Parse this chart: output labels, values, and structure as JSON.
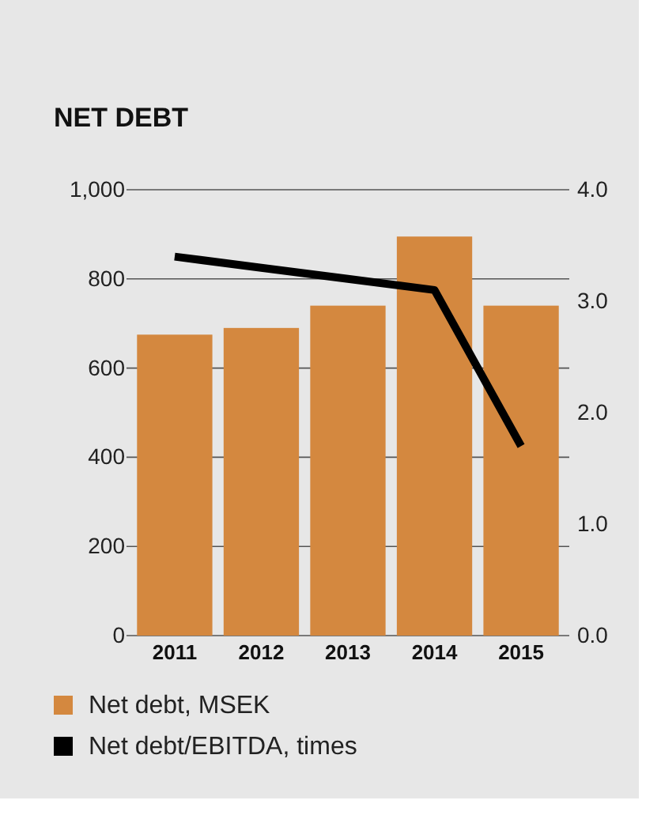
{
  "chart_data": {
    "type": "bar",
    "title": "NET DEBT",
    "categories": [
      "2011",
      "2012",
      "2013",
      "2014",
      "2015"
    ],
    "series": [
      {
        "name": "Net debt, MSEK",
        "color": "#d4883f",
        "values": [
          675,
          690,
          740,
          895,
          740
        ]
      },
      {
        "name": "Net debt/EBITDA, times",
        "color": "#000000",
        "type": "line",
        "axis": "y2",
        "values": [
          3.4,
          3.3,
          3.2,
          3.1,
          1.7
        ]
      }
    ],
    "ylim": [
      0,
      1000
    ],
    "yticks": [
      0,
      200,
      400,
      600,
      800,
      {
        "value": 1000,
        "label": "1,000"
      }
    ],
    "y2lim": [
      0,
      4
    ],
    "y2ticks": [
      {
        "value": 0,
        "label": "0.0"
      },
      {
        "value": 1,
        "label": "1.0"
      },
      {
        "value": 2,
        "label": "2.0"
      },
      {
        "value": 3,
        "label": "3.0"
      },
      {
        "value": 4,
        "label": "4.0"
      }
    ],
    "grid": "y",
    "legend": "bottom left",
    "marker": "none"
  }
}
